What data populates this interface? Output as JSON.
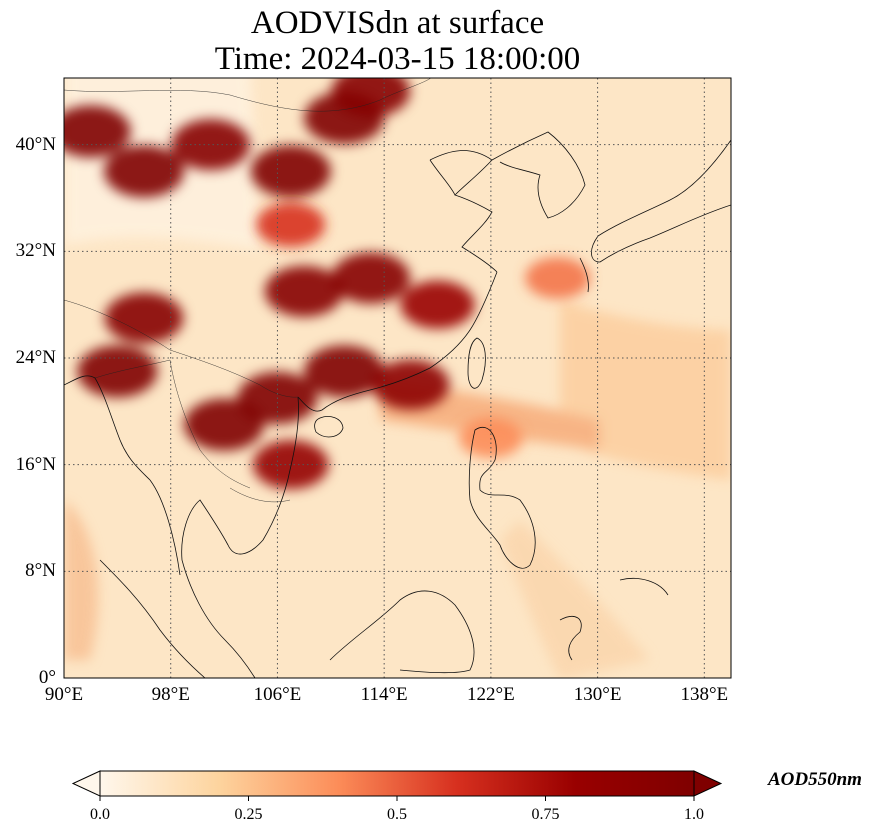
{
  "title": {
    "line1": "AODVISdn at surface",
    "line2": "Time: 2024-03-15 18:00:00"
  },
  "map": {
    "region": "East and Southeast Asia",
    "projection": "PlateCarree",
    "lon_range": [
      90,
      140
    ],
    "lat_range": [
      0,
      45
    ],
    "gridlines": "dotted gray",
    "coastlines": true,
    "country_borders": true,
    "lat_ticks": [
      {
        "value": 40,
        "label": "40°N"
      },
      {
        "value": 32,
        "label": "32°N"
      },
      {
        "value": 24,
        "label": "24°N"
      },
      {
        "value": 16,
        "label": "16°N"
      },
      {
        "value": 8,
        "label": "8°N"
      },
      {
        "value": 0,
        "label": "0°"
      }
    ],
    "lon_ticks": [
      {
        "value": 90,
        "label": "90°E"
      },
      {
        "value": 98,
        "label": "98°E"
      },
      {
        "value": 106,
        "label": "106°E"
      },
      {
        "value": 114,
        "label": "114°E"
      },
      {
        "value": 122,
        "label": "122°E"
      },
      {
        "value": 130,
        "label": "130°E"
      },
      {
        "value": 138,
        "label": "138°E"
      }
    ],
    "aod_hotspots": [
      {
        "lon": 92,
        "lat": 41,
        "value": 1.0
      },
      {
        "lon": 96,
        "lat": 38,
        "value": 1.0
      },
      {
        "lon": 101,
        "lat": 40,
        "value": 0.95
      },
      {
        "lon": 107,
        "lat": 38,
        "value": 1.0
      },
      {
        "lon": 111,
        "lat": 42,
        "value": 1.0
      },
      {
        "lon": 113,
        "lat": 44,
        "value": 0.95
      },
      {
        "lon": 107,
        "lat": 34,
        "value": 0.6
      },
      {
        "lon": 108,
        "lat": 29,
        "value": 0.95
      },
      {
        "lon": 113,
        "lat": 30,
        "value": 0.95
      },
      {
        "lon": 118,
        "lat": 28,
        "value": 0.8
      },
      {
        "lon": 96,
        "lat": 27,
        "value": 0.95
      },
      {
        "lon": 94,
        "lat": 23,
        "value": 1.0
      },
      {
        "lon": 102,
        "lat": 19,
        "value": 1.0
      },
      {
        "lon": 106,
        "lat": 21,
        "value": 1.0
      },
      {
        "lon": 111,
        "lat": 23,
        "value": 1.0
      },
      {
        "lon": 116,
        "lat": 22,
        "value": 0.9
      },
      {
        "lon": 107,
        "lat": 16,
        "value": 0.85
      },
      {
        "lon": 127,
        "lat": 30,
        "value": 0.45
      },
      {
        "lon": 122,
        "lat": 18,
        "value": 0.4
      }
    ]
  },
  "colorbar": {
    "label": "AOD550nm",
    "cmap": "OrRd",
    "range": [
      0.0,
      1.0
    ],
    "extend": "both",
    "colors": [
      "#fff7ec",
      "#fdd49e",
      "#fc8d59",
      "#d7301f",
      "#990000",
      "#7f0000"
    ],
    "ticks": [
      {
        "value": 0.0,
        "label": "0.0"
      },
      {
        "value": 0.25,
        "label": "0.25"
      },
      {
        "value": 0.5,
        "label": "0.5"
      },
      {
        "value": 0.75,
        "label": "0.75"
      },
      {
        "value": 1.0,
        "label": "1.0"
      }
    ]
  }
}
